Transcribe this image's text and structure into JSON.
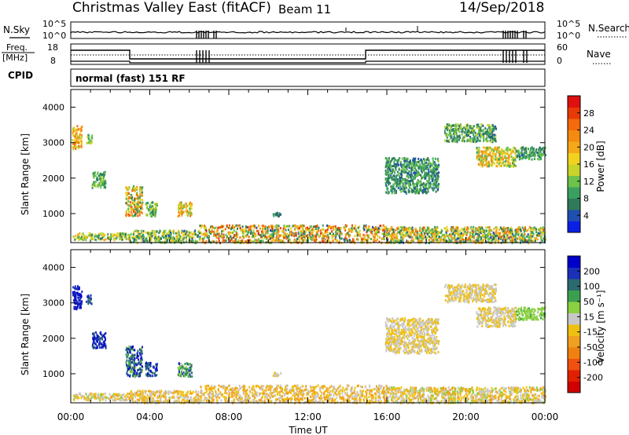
{
  "header": {
    "station": "Christmas Valley East (fitACF)",
    "beam": "Beam 11",
    "date": "14/Sep/2018"
  },
  "panels": {
    "nsky": {
      "label": "N.Sky",
      "tick_top": "10^5",
      "tick_bottom": "10^0",
      "right_label": "N.Search",
      "right_tick_top": "10^5",
      "right_tick_bottom": "10^0"
    },
    "freq": {
      "label_line1": "Freq.",
      "label_line2": "[MHz]",
      "tick_top": "18",
      "tick_bottom": "8",
      "right_label": "Nave",
      "right_tick_top": "60",
      "right_tick_bottom": "0"
    },
    "cpid": {
      "label": "CPID",
      "value": "normal (fast) 151 RF"
    }
  },
  "colors": {
    "power_scale": [
      "#0a1fe6",
      "#1f4fb0",
      "#2f7a5a",
      "#3aa060",
      "#6cc24a",
      "#c8d42a",
      "#f2d21e",
      "#f5a818",
      "#f58a10",
      "#f56a0a",
      "#e83a06",
      "#e01010"
    ],
    "velocity_scale": [
      "#0000cc",
      "#1a30b8",
      "#2a6a70",
      "#3aa050",
      "#8ad040",
      "#c8c8c8",
      "#f0c010",
      "#f0a020",
      "#f08010",
      "#f05010",
      "#e02000",
      "#d00000"
    ]
  },
  "chart_data": [
    {
      "type": "heatmap",
      "name": "power",
      "xlabel": "",
      "ylabel": "Slant Range [km]",
      "xlim": [
        0,
        24
      ],
      "ylim": [
        180,
        4500
      ],
      "y_ticks": [
        1000,
        2000,
        3000,
        4000
      ],
      "y_tick_labels": [
        "1000",
        "2000",
        "3000",
        "4000"
      ],
      "colorbar": {
        "label": "Power [dB]",
        "ticks": [
          "4",
          "8",
          "12",
          "16",
          "20",
          "24",
          "28"
        ],
        "range": [
          0,
          30
        ]
      },
      "regions": [
        {
          "t": [
            0.05,
            0.55
          ],
          "r": [
            2850,
            3500
          ],
          "v": [
            12,
            24
          ]
        },
        {
          "t": [
            0.75,
            1.05
          ],
          "r": [
            3000,
            3250
          ],
          "v": [
            8,
            14
          ]
        },
        {
          "t": [
            1.05,
            1.75
          ],
          "r": [
            1750,
            2200
          ],
          "v": [
            6,
            14
          ]
        },
        {
          "t": [
            2.75,
            3.6
          ],
          "r": [
            950,
            1800
          ],
          "v": [
            6,
            26
          ]
        },
        {
          "t": [
            3.75,
            4.35
          ],
          "r": [
            950,
            1350
          ],
          "v": [
            6,
            16
          ]
        },
        {
          "t": [
            5.4,
            6.1
          ],
          "r": [
            950,
            1350
          ],
          "v": [
            10,
            24
          ]
        },
        {
          "t": [
            0.1,
            3.0
          ],
          "r": [
            280,
            480
          ],
          "v": [
            6,
            20
          ]
        },
        {
          "t": [
            3.0,
            6.5
          ],
          "r": [
            200,
            550
          ],
          "v": [
            4,
            18
          ]
        },
        {
          "t": [
            6.5,
            16.0
          ],
          "r": [
            200,
            700
          ],
          "v": [
            4,
            28
          ]
        },
        {
          "t": [
            16.0,
            24.0
          ],
          "r": [
            200,
            650
          ],
          "v": [
            4,
            24
          ]
        },
        {
          "t": [
            18.9,
            21.5
          ],
          "r": [
            3050,
            3550
          ],
          "v": [
            4,
            14
          ]
        },
        {
          "t": [
            20.5,
            22.5
          ],
          "r": [
            2350,
            2900
          ],
          "v": [
            8,
            22
          ]
        },
        {
          "t": [
            22.5,
            24.0
          ],
          "r": [
            2550,
            2900
          ],
          "v": [
            4,
            12
          ]
        },
        {
          "t": [
            15.9,
            18.6
          ],
          "r": [
            1600,
            2600
          ],
          "v": [
            4,
            12
          ]
        },
        {
          "t": [
            10.2,
            10.6
          ],
          "r": [
            950,
            1050
          ],
          "v": [
            4,
            8
          ]
        }
      ]
    },
    {
      "type": "heatmap",
      "name": "velocity",
      "xlabel": "Time UT",
      "ylabel": "Slant Range [km]",
      "xlim": [
        0,
        24
      ],
      "ylim": [
        180,
        4500
      ],
      "x_ticks": [
        0,
        4,
        8,
        12,
        16,
        20,
        24
      ],
      "x_tick_labels": [
        "00:00",
        "04:00",
        "08:00",
        "12:00",
        "16:00",
        "20:00",
        "00:00"
      ],
      "y_ticks": [
        1000,
        2000,
        3000,
        4000
      ],
      "y_tick_labels": [
        "1000",
        "2000",
        "3000",
        "4000"
      ],
      "colorbar": {
        "label": "Velocity [m s⁻¹]",
        "ticks": [
          "200",
          "100",
          "50",
          "15",
          "-15",
          "-50",
          "-100",
          "-200"
        ],
        "range": [
          -250,
          250
        ]
      },
      "regions": [
        {
          "t": [
            0.05,
            0.55
          ],
          "r": [
            2850,
            3500
          ],
          "v": [
            180,
            240
          ]
        },
        {
          "t": [
            0.75,
            1.05
          ],
          "r": [
            3000,
            3250
          ],
          "v": [
            150,
            220
          ]
        },
        {
          "t": [
            1.05,
            1.75
          ],
          "r": [
            1750,
            2200
          ],
          "v": [
            150,
            230
          ]
        },
        {
          "t": [
            2.75,
            3.6
          ],
          "r": [
            950,
            1800
          ],
          "v": [
            60,
            240
          ]
        },
        {
          "t": [
            3.75,
            4.35
          ],
          "r": [
            950,
            1350
          ],
          "v": [
            120,
            230
          ]
        },
        {
          "t": [
            5.4,
            6.1
          ],
          "r": [
            950,
            1350
          ],
          "v": [
            20,
            200
          ]
        },
        {
          "t": [
            0.1,
            3.0
          ],
          "r": [
            280,
            480
          ],
          "v": [
            -60,
            60
          ]
        },
        {
          "t": [
            3.0,
            6.5
          ],
          "r": [
            200,
            550
          ],
          "v": [
            -60,
            40
          ]
        },
        {
          "t": [
            6.5,
            16.0
          ],
          "r": [
            200,
            700
          ],
          "v": [
            -80,
            40
          ]
        },
        {
          "t": [
            16.0,
            24.0
          ],
          "r": [
            200,
            650
          ],
          "v": [
            -60,
            60
          ]
        },
        {
          "t": [
            18.9,
            21.5
          ],
          "r": [
            3050,
            3550
          ],
          "v": [
            -12,
            12
          ]
        },
        {
          "t": [
            20.5,
            22.5
          ],
          "r": [
            2350,
            2900
          ],
          "v": [
            -10,
            14
          ]
        },
        {
          "t": [
            22.5,
            24.0
          ],
          "r": [
            2550,
            2900
          ],
          "v": [
            40,
            90
          ]
        },
        {
          "t": [
            15.9,
            18.6
          ],
          "r": [
            1600,
            2600
          ],
          "v": [
            -10,
            10
          ]
        },
        {
          "t": [
            10.2,
            10.6
          ],
          "r": [
            950,
            1050
          ],
          "v": [
            -10,
            10
          ]
        }
      ]
    }
  ]
}
